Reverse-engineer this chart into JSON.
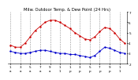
{
  "title": "Milw. Outdoor Temp. & Dew Point (24 Hrs)",
  "line1_color": "#cc0000",
  "line2_color": "#0000cc",
  "background_color": "#ffffff",
  "grid_color": "#888888",
  "ylim": [
    20,
    70
  ],
  "ytick_vals": [
    20,
    30,
    40,
    50,
    60,
    70
  ],
  "ytick_labels": [
    "2",
    "3",
    "4",
    "5",
    "6",
    "7"
  ],
  "temp_values": [
    38,
    36,
    36,
    40,
    46,
    52,
    56,
    60,
    62,
    62,
    60,
    57,
    54,
    50,
    47,
    44,
    43,
    46,
    51,
    55,
    54,
    50,
    44,
    40
  ],
  "dew_values": [
    32,
    31,
    30,
    30,
    31,
    32,
    33,
    33,
    32,
    31,
    30,
    30,
    29,
    29,
    28,
    27,
    26,
    28,
    32,
    36,
    35,
    33,
    31,
    30
  ],
  "x_hour_labels": [
    "1",
    "",
    "3",
    "",
    "5",
    "",
    "7",
    "",
    "9",
    "",
    "1",
    "",
    "1",
    "",
    "3",
    "",
    "5",
    "",
    "7",
    "",
    "9",
    "",
    "1",
    ""
  ],
  "x_ampm_labels": [
    "a",
    "",
    "a",
    "",
    "a",
    "",
    "a",
    "",
    "a",
    "",
    "1",
    "",
    "p",
    "",
    "p",
    "",
    "p",
    "",
    "p",
    "",
    "p",
    "",
    "1",
    ""
  ],
  "n_points": 24,
  "marker_size": 1.5,
  "line_width": 0.6,
  "title_fontsize": 3.8,
  "tick_fontsize": 3.0,
  "grid_linewidth": 0.4,
  "grid_alpha": 0.9
}
